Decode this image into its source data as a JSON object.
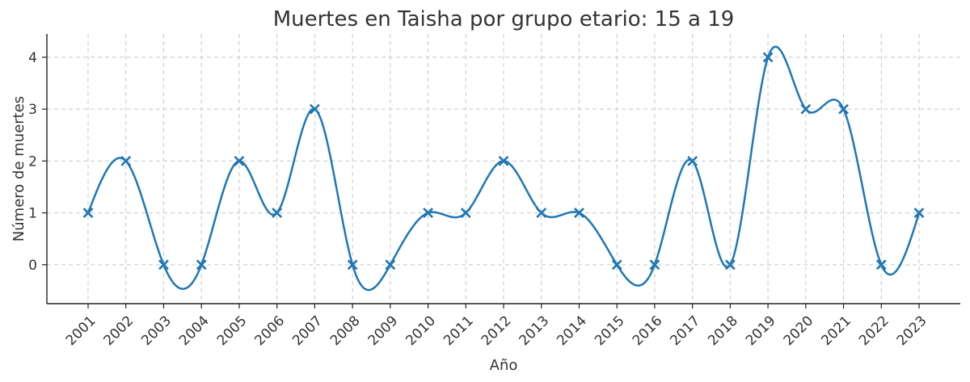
{
  "chart_data": {
    "type": "line",
    "title": "Muertes en Taisha por grupo etario: 15 a 19",
    "xlabel": "Año",
    "ylabel": "Número de muertes",
    "x": [
      "2001",
      "2002",
      "2003",
      "2004",
      "2005",
      "2006",
      "2007",
      "2008",
      "2009",
      "2010",
      "2011",
      "2012",
      "2013",
      "2014",
      "2015",
      "2016",
      "2017",
      "2018",
      "2019",
      "2020",
      "2021",
      "2022",
      "2023"
    ],
    "series": [
      {
        "values": [
          1,
          2,
          0,
          0,
          2,
          1,
          3,
          0,
          0,
          1,
          1,
          2,
          1,
          1,
          0,
          0,
          2,
          0,
          4,
          3,
          3,
          0,
          1
        ],
        "color": "#1f77b4",
        "marker": "x",
        "interpolation": "smooth-spline"
      }
    ],
    "yticks": [
      0,
      1,
      2,
      3,
      4
    ],
    "ylim": [
      -0.75,
      4.45
    ],
    "grid": true,
    "legend": "none"
  }
}
